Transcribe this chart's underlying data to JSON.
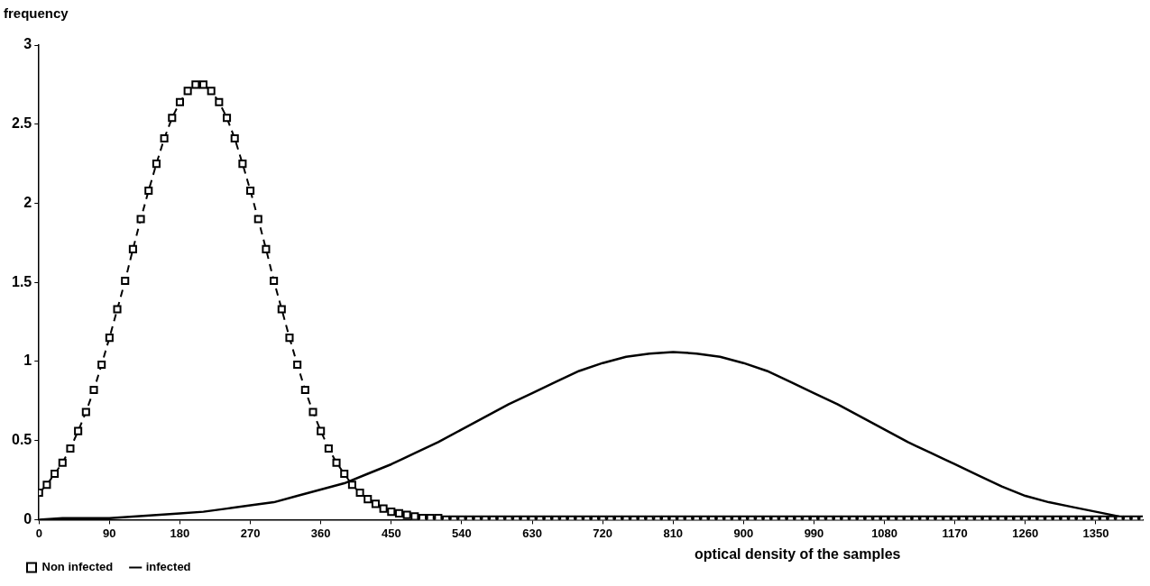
{
  "chart_data": {
    "type": "line",
    "ylabel": "frequency",
    "xlabel": "optical density of the samples",
    "xlim": [
      0,
      1410
    ],
    "xticks": [
      0,
      90,
      180,
      270,
      360,
      450,
      540,
      630,
      720,
      810,
      900,
      990,
      1080,
      1170,
      1260,
      1350
    ],
    "ylim": [
      0,
      3
    ],
    "yticks": [
      0,
      0.5,
      1,
      1.5,
      2,
      2.5,
      3
    ],
    "grid": false,
    "legend": "bottom left",
    "series": [
      {
        "name": "Non infected",
        "color": "#000000",
        "marker": "square",
        "line_style": "dashed",
        "x": [
          0,
          10,
          20,
          30,
          40,
          50,
          60,
          70,
          80,
          90,
          100,
          110,
          120,
          130,
          140,
          150,
          160,
          170,
          180,
          190,
          200,
          210,
          220,
          230,
          240,
          250,
          260,
          270,
          280,
          290,
          300,
          310,
          320,
          330,
          340,
          350,
          360,
          370,
          380,
          390,
          400,
          410,
          420,
          430,
          440,
          450,
          460,
          470,
          480,
          490,
          500,
          510,
          520,
          530,
          540,
          550,
          560,
          570,
          580,
          590,
          600,
          610,
          620,
          630,
          640,
          650,
          660,
          670,
          680,
          690,
          700,
          710,
          720,
          730,
          740,
          750,
          760,
          770,
          780,
          790,
          800,
          810,
          820,
          830,
          840,
          850,
          860,
          870,
          880,
          890,
          900,
          910,
          920,
          930,
          940,
          950,
          960,
          970,
          980,
          990,
          1000,
          1010,
          1020,
          1030,
          1040,
          1050,
          1060,
          1070,
          1080,
          1090,
          1100,
          1110,
          1120,
          1130,
          1140,
          1150,
          1160,
          1170,
          1180,
          1190,
          1200,
          1210,
          1220,
          1230,
          1240,
          1250,
          1260,
          1270,
          1280,
          1290,
          1300,
          1310,
          1320,
          1330,
          1340,
          1350,
          1360,
          1370,
          1380,
          1390,
          1400,
          1410
        ],
        "values": [
          0.17,
          0.22,
          0.29,
          0.36,
          0.45,
          0.56,
          0.68,
          0.82,
          0.98,
          1.15,
          1.33,
          1.51,
          1.71,
          1.9,
          2.08,
          2.25,
          2.41,
          2.54,
          2.64,
          2.71,
          2.75,
          2.75,
          2.71,
          2.64,
          2.54,
          2.41,
          2.25,
          2.08,
          1.9,
          1.71,
          1.51,
          1.33,
          1.15,
          0.98,
          0.82,
          0.68,
          0.56,
          0.45,
          0.36,
          0.29,
          0.22,
          0.17,
          0.13,
          0.1,
          0.07,
          0.05,
          0.04,
          0.03,
          0.02,
          0.01,
          0.01,
          0.01,
          0,
          0,
          0,
          0,
          0,
          0,
          0,
          0,
          0,
          0,
          0,
          0,
          0,
          0,
          0,
          0,
          0,
          0,
          0,
          0,
          0,
          0,
          0,
          0,
          0,
          0,
          0,
          0,
          0,
          0,
          0,
          0,
          0,
          0,
          0,
          0,
          0,
          0,
          0,
          0,
          0,
          0,
          0,
          0,
          0,
          0,
          0,
          0,
          0,
          0,
          0,
          0,
          0,
          0,
          0,
          0,
          0,
          0,
          0,
          0,
          0,
          0,
          0,
          0,
          0,
          0,
          0,
          0,
          0,
          0,
          0,
          0,
          0,
          0,
          0,
          0,
          0,
          0,
          0,
          0,
          0,
          0,
          0,
          0,
          0,
          0,
          0,
          0,
          0,
          0
        ]
      },
      {
        "name": "infected",
        "color": "#000000",
        "marker": "none",
        "line_style": "solid",
        "x": [
          0,
          30,
          60,
          90,
          120,
          150,
          180,
          210,
          240,
          270,
          300,
          330,
          360,
          390,
          420,
          450,
          480,
          510,
          540,
          570,
          600,
          630,
          660,
          690,
          720,
          750,
          780,
          810,
          840,
          870,
          900,
          930,
          960,
          990,
          1020,
          1050,
          1080,
          1110,
          1140,
          1170,
          1200,
          1230,
          1260,
          1290,
          1320,
          1350,
          1380,
          1410
        ],
        "values": [
          0,
          0.01,
          0.01,
          0.01,
          0.02,
          0.03,
          0.04,
          0.05,
          0.07,
          0.09,
          0.11,
          0.15,
          0.19,
          0.23,
          0.29,
          0.35,
          0.42,
          0.49,
          0.57,
          0.65,
          0.73,
          0.8,
          0.87,
          0.94,
          0.99,
          1.03,
          1.05,
          1.06,
          1.05,
          1.03,
          0.99,
          0.94,
          0.87,
          0.8,
          0.73,
          0.65,
          0.57,
          0.49,
          0.42,
          0.35,
          0.28,
          0.21,
          0.15,
          0.11,
          0.08,
          0.05,
          0.02,
          0.01
        ]
      }
    ]
  }
}
